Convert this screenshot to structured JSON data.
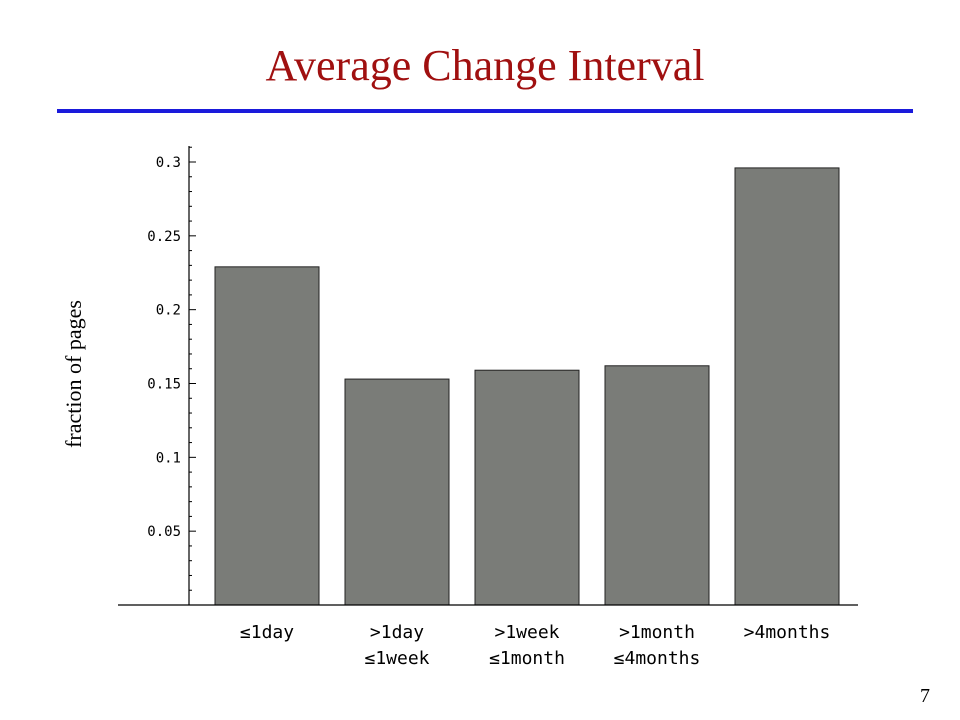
{
  "slide": {
    "title": "Average Change Interval",
    "page_number": "7"
  },
  "colors": {
    "title": "#a01010",
    "rule": "#1a1adb",
    "bar_fill": "#7a7c78",
    "axis": "#000000"
  },
  "chart_data": {
    "type": "bar",
    "title": "",
    "xlabel": "",
    "ylabel": "fraction of pages",
    "categories": [
      [
        "≤1day"
      ],
      [
        ">1day",
        "≤1week"
      ],
      [
        ">1week",
        "≤1month"
      ],
      [
        ">1month",
        "≤4months"
      ],
      [
        ">4months"
      ]
    ],
    "values": [
      0.229,
      0.153,
      0.159,
      0.162,
      0.296
    ],
    "yticks": [
      0.05,
      0.1,
      0.15,
      0.2,
      0.25,
      0.3
    ],
    "ytick_labels": [
      "0.05",
      "0.1",
      "0.15",
      "0.2",
      "0.25",
      "0.3"
    ],
    "ylim": [
      0,
      0.3
    ],
    "grid": false,
    "legend": false
  }
}
